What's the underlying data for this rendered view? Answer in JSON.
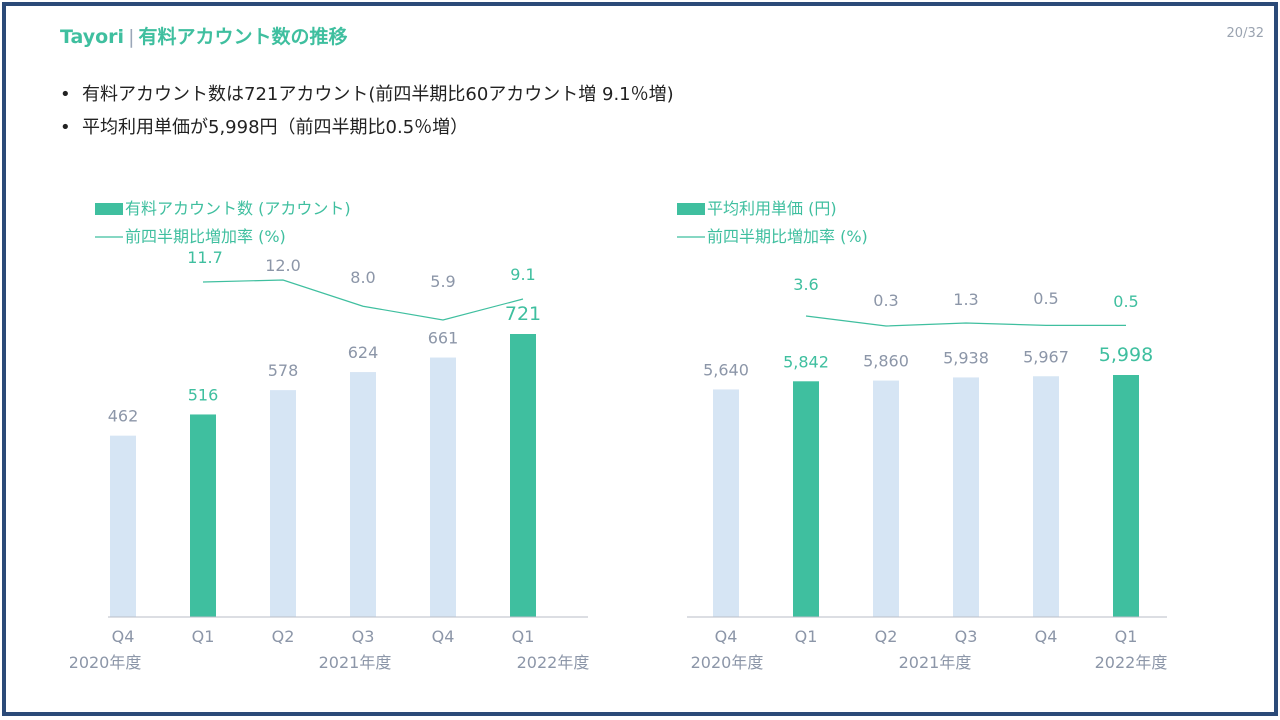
{
  "header": {
    "brand": "Tayori",
    "separator": "|",
    "title": "有料アカウント数の推移",
    "page": "20/32"
  },
  "bullets": [
    "有料アカウント数は721アカウント(前四半期比60アカウント増 9.1％増)",
    "平均利用単価が5,998円（前四半期比0.5％増）"
  ],
  "colors": {
    "accent": "#3fbf9f",
    "bar_light": "#d6e5f4",
    "label_grey": "#8c96a8",
    "frame": "#2b4a78"
  },
  "chart_data": [
    {
      "type": "bar",
      "legend": [
        "有料アカウント数 (アカウント)",
        "前四半期比増加率 (%)"
      ],
      "categories": [
        "Q4",
        "Q1",
        "Q2",
        "Q3",
        "Q4",
        "Q1"
      ],
      "year_labels": [
        "2020年度",
        "2021年度",
        "2022年度"
      ],
      "values": [
        462,
        516,
        578,
        624,
        661,
        721
      ],
      "value_labels": [
        "462",
        "516",
        "578",
        "624",
        "661",
        "721"
      ],
      "highlight": [
        false,
        true,
        false,
        false,
        false,
        true
      ],
      "growth": [
        null,
        11.7,
        12.0,
        8.0,
        5.9,
        9.1
      ],
      "growth_labels": [
        "",
        "11.7",
        "12.0",
        "8.0",
        "5.9",
        "9.1"
      ],
      "ylim": [
        0,
        800
      ],
      "growth_ylim": [
        0,
        25
      ]
    },
    {
      "type": "bar",
      "legend": [
        "平均利用単価 (円)",
        "前四半期比増加率 (%)"
      ],
      "categories": [
        "Q4",
        "Q1",
        "Q2",
        "Q3",
        "Q4",
        "Q1"
      ],
      "year_labels": [
        "2020年度",
        "2021年度",
        "2022年度"
      ],
      "values": [
        5640,
        5842,
        5860,
        5938,
        5967,
        5998
      ],
      "value_labels": [
        "5,640",
        "5,842",
        "5,860",
        "5,938",
        "5,967",
        "5,998"
      ],
      "highlight": [
        false,
        true,
        false,
        false,
        false,
        true
      ],
      "growth": [
        null,
        3.6,
        0.3,
        1.3,
        0.5,
        0.5
      ],
      "growth_labels": [
        "",
        "3.6",
        "0.3",
        "1.3",
        "0.5",
        "0.5"
      ],
      "ylim": [
        0,
        9500
      ],
      "growth_ylim": [
        -4,
        12
      ]
    }
  ]
}
